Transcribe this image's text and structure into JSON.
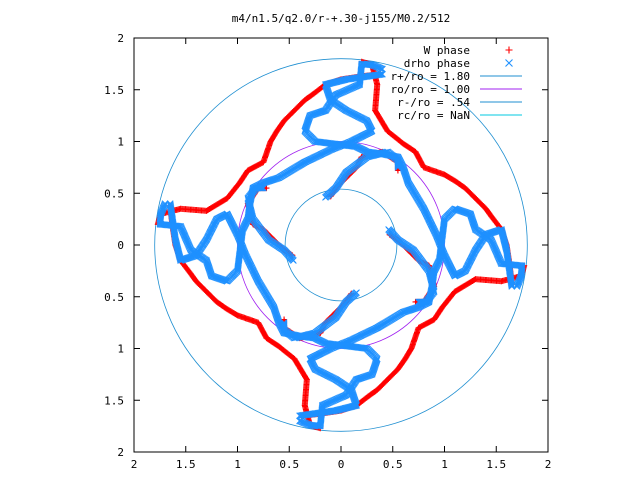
{
  "chart_data": {
    "type": "scatter",
    "title": "m4/n1.5/q2.0/r-+.30-j155/M0.2/512",
    "xlabel": "",
    "ylabel": "",
    "xlim": [
      -2,
      2
    ],
    "ylim": [
      -2,
      2
    ],
    "x_ticks": [
      {
        "value": -2,
        "label": "2"
      },
      {
        "value": -1.5,
        "label": "1.5"
      },
      {
        "value": -1,
        "label": "1"
      },
      {
        "value": -0.5,
        "label": "0.5"
      },
      {
        "value": 0,
        "label": "0"
      },
      {
        "value": 0.5,
        "label": "0.5"
      },
      {
        "value": 1,
        "label": "1"
      },
      {
        "value": 1.5,
        "label": "1.5"
      },
      {
        "value": 2,
        "label": "2"
      }
    ],
    "y_ticks": [
      {
        "value": 2,
        "label": "2"
      },
      {
        "value": 1.5,
        "label": "1.5"
      },
      {
        "value": 1,
        "label": "1"
      },
      {
        "value": 0.5,
        "label": "0.5"
      },
      {
        "value": 0,
        "label": "0"
      },
      {
        "value": -0.5,
        "label": "0.5"
      },
      {
        "value": -1,
        "label": "1"
      },
      {
        "value": -1.5,
        "label": "1.5"
      },
      {
        "value": -2,
        "label": "2"
      }
    ],
    "grid": false,
    "legend_position": "top-right",
    "legend": [
      {
        "label": "W phase",
        "kind": "marker",
        "symbol": "plus",
        "color": "#ff0000"
      },
      {
        "label": "drho phase",
        "kind": "marker",
        "symbol": "cross",
        "color": "#1e90ff"
      },
      {
        "label": "r+/ro = 1.80",
        "kind": "line",
        "color": "#1f8fd1"
      },
      {
        "label": "ro/ro = 1.00",
        "kind": "line",
        "color": "#a020f0"
      },
      {
        "label": "r-/ro = .54",
        "kind": "line",
        "color": "#1f8fd1"
      },
      {
        "label": "rc/ro = NaN",
        "kind": "line",
        "color": "#00c8e0"
      }
    ],
    "circles": [
      {
        "name": "r+/ro",
        "radius": 1.8,
        "color": "#1f8fd1"
      },
      {
        "name": "ro/ro",
        "radius": 1.0,
        "color": "#a020f0"
      },
      {
        "name": "r-/ro",
        "radius": 0.54,
        "color": "#1f8fd1"
      }
    ],
    "series": [
      {
        "name": "W phase",
        "color": "#ff0000",
        "symbol": "plus",
        "arms_symmetry": 4,
        "arm_outer": [
          [
            0.2,
            1.77
          ],
          [
            0.3,
            1.74
          ],
          [
            0.35,
            1.55
          ],
          [
            0.33,
            1.3
          ],
          [
            0.45,
            1.1
          ],
          [
            0.55,
            1.02
          ],
          [
            0.6,
            0.98
          ],
          [
            0.72,
            0.9
          ],
          [
            0.8,
            0.75
          ],
          [
            1.0,
            0.68
          ],
          [
            1.1,
            0.62
          ],
          [
            1.2,
            0.55
          ],
          [
            1.3,
            0.45
          ],
          [
            1.4,
            0.35
          ],
          [
            1.45,
            0.28
          ],
          [
            1.55,
            0.15
          ],
          [
            1.6,
            0.0
          ],
          [
            1.63,
            -0.2
          ],
          [
            1.65,
            -0.38
          ]
        ],
        "arm_inner": [
          [
            0.47,
            0.1
          ],
          [
            0.55,
            0.05
          ],
          [
            0.65,
            -0.05
          ],
          [
            0.75,
            -0.15
          ],
          [
            0.85,
            -0.2
          ],
          [
            0.9,
            -0.4
          ],
          [
            0.8,
            -0.55
          ],
          [
            0.72,
            -0.55
          ]
        ]
      },
      {
        "name": "drho phase",
        "color": "#1e90ff",
        "symbol": "cross",
        "arms_symmetry": 4,
        "arm_outer": [
          [
            0.4,
            1.7
          ],
          [
            0.3,
            1.74
          ],
          [
            0.2,
            1.75
          ],
          [
            0.18,
            1.55
          ],
          [
            -0.05,
            1.45
          ],
          [
            -0.15,
            1.3
          ],
          [
            -0.3,
            1.25
          ],
          [
            -0.35,
            1.1
          ],
          [
            -0.25,
            1.0
          ],
          [
            0.15,
            0.95
          ],
          [
            0.25,
            0.9
          ],
          [
            0.4,
            0.88
          ],
          [
            0.55,
            0.85
          ],
          [
            0.6,
            0.75
          ],
          [
            0.65,
            0.6
          ],
          [
            0.8,
            0.35
          ],
          [
            0.92,
            0.1
          ],
          [
            1.0,
            -0.1
          ],
          [
            1.05,
            -0.2
          ],
          [
            1.1,
            -0.3
          ],
          [
            1.2,
            -0.25
          ],
          [
            1.3,
            -0.05
          ],
          [
            1.4,
            0.1
          ],
          [
            1.55,
            0.15
          ],
          [
            1.6,
            -0.05
          ],
          [
            1.65,
            -0.4
          ]
        ],
        "arm_inner": [
          [
            0.46,
            0.15
          ],
          [
            0.55,
            0.05
          ],
          [
            0.7,
            -0.05
          ],
          [
            0.85,
            -0.25
          ],
          [
            0.9,
            -0.45
          ],
          [
            0.82,
            -0.55
          ],
          [
            0.75,
            -0.55
          ]
        ]
      }
    ]
  }
}
